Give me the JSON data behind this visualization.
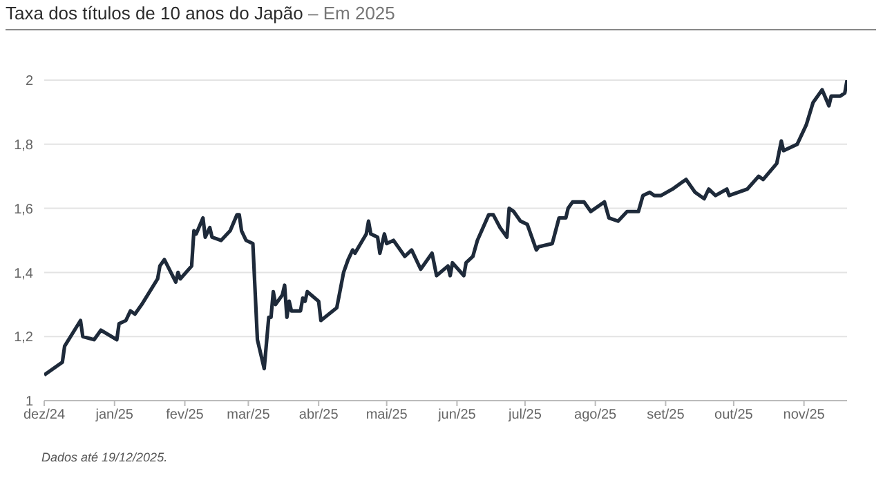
{
  "chart_data": {
    "type": "line",
    "title": "Taxa dos títulos de 10 anos do Japão",
    "subtitle": "– Em 2025",
    "annotations": [
      "Dados até 19/12/2025."
    ],
    "x": [
      "2024-12-01",
      "2024-12-09",
      "2024-12-10",
      "2024-12-17",
      "2024-12-18",
      "2024-12-23",
      "2024-12-26",
      "2025-01-02",
      "2025-01-03",
      "2025-01-06",
      "2025-01-08",
      "2025-01-10",
      "2025-01-13",
      "2025-01-20",
      "2025-01-21",
      "2025-01-23",
      "2025-01-28",
      "2025-01-29",
      "2025-01-30",
      "2025-02-04",
      "2025-02-05",
      "2025-02-06",
      "2025-02-09",
      "2025-02-10",
      "2025-02-12",
      "2025-02-13",
      "2025-02-17",
      "2025-02-21",
      "2025-02-24",
      "2025-02-25",
      "2025-02-26",
      "2025-02-28",
      "2025-03-03",
      "2025-03-05",
      "2025-03-08",
      "2025-03-10",
      "2025-03-11",
      "2025-03-12",
      "2025-03-13",
      "2025-03-16",
      "2025-03-17",
      "2025-03-18",
      "2025-03-19",
      "2025-03-20",
      "2025-03-24",
      "2025-03-25",
      "2025-03-26",
      "2025-03-27",
      "2025-04-01",
      "2025-04-02",
      "2025-04-09",
      "2025-04-12",
      "2025-04-14",
      "2025-04-16",
      "2025-04-17",
      "2025-04-22",
      "2025-04-23",
      "2025-04-24",
      "2025-04-27",
      "2025-04-28",
      "2025-04-30",
      "2025-05-01",
      "2025-05-04",
      "2025-05-06",
      "2025-05-09",
      "2025-05-12",
      "2025-05-16",
      "2025-05-21",
      "2025-05-23",
      "2025-05-28",
      "2025-05-29",
      "2025-05-30",
      "2025-06-04",
      "2025-06-05",
      "2025-06-08",
      "2025-06-10",
      "2025-06-15",
      "2025-06-17",
      "2025-06-20",
      "2025-06-23",
      "2025-06-24",
      "2025-06-26",
      "2025-06-29",
      "2025-07-02",
      "2025-07-06",
      "2025-07-07",
      "2025-07-13",
      "2025-07-16",
      "2025-07-19",
      "2025-07-20",
      "2025-07-22",
      "2025-07-27",
      "2025-07-30",
      "2025-08-05",
      "2025-08-07",
      "2025-08-11",
      "2025-08-15",
      "2025-08-20",
      "2025-08-22",
      "2025-08-25",
      "2025-08-27",
      "2025-08-30",
      "2025-09-04",
      "2025-09-08",
      "2025-09-10",
      "2025-09-14",
      "2025-09-18",
      "2025-09-20",
      "2025-09-23",
      "2025-09-28",
      "2025-09-29",
      "2025-10-07",
      "2025-10-12",
      "2025-10-14",
      "2025-10-20",
      "2025-10-22",
      "2025-10-23",
      "2025-10-29",
      "2025-11-02",
      "2025-11-05",
      "2025-11-09",
      "2025-11-12",
      "2025-11-13",
      "2025-11-17",
      "2025-11-19",
      "2025-11-20"
    ],
    "series": [
      {
        "color": "#1e2a3a",
        "values": [
          1.08,
          1.12,
          1.17,
          1.25,
          1.2,
          1.19,
          1.22,
          1.19,
          1.24,
          1.25,
          1.28,
          1.27,
          1.3,
          1.38,
          1.42,
          1.44,
          1.37,
          1.4,
          1.38,
          1.42,
          1.53,
          1.52,
          1.57,
          1.51,
          1.54,
          1.51,
          1.5,
          1.53,
          1.58,
          1.58,
          1.53,
          1.5,
          1.49,
          1.19,
          1.1,
          1.26,
          1.26,
          1.34,
          1.3,
          1.33,
          1.36,
          1.26,
          1.31,
          1.28,
          1.28,
          1.32,
          1.31,
          1.34,
          1.31,
          1.25,
          1.29,
          1.4,
          1.44,
          1.47,
          1.46,
          1.52,
          1.56,
          1.52,
          1.51,
          1.46,
          1.52,
          1.49,
          1.5,
          1.48,
          1.45,
          1.47,
          1.41,
          1.46,
          1.39,
          1.42,
          1.39,
          1.43,
          1.39,
          1.43,
          1.45,
          1.5,
          1.58,
          1.58,
          1.54,
          1.51,
          1.6,
          1.59,
          1.56,
          1.55,
          1.47,
          1.48,
          1.49,
          1.57,
          1.57,
          1.6,
          1.62,
          1.62,
          1.59,
          1.62,
          1.57,
          1.56,
          1.59,
          1.59,
          1.64,
          1.65,
          1.64,
          1.64,
          1.66,
          1.68,
          1.69,
          1.65,
          1.63,
          1.66,
          1.64,
          1.66,
          1.64,
          1.66,
          1.7,
          1.69,
          1.74,
          1.81,
          1.78,
          1.8,
          1.86,
          1.93,
          1.97,
          1.92,
          1.95,
          1.95,
          1.96,
          2
        ]
      }
    ],
    "xlim": [
      "2024-12-01",
      "2025-11-20"
    ],
    "xticks": [
      {
        "value": "2024-12-01",
        "label": "dez/24"
      },
      {
        "value": "2025-01-01",
        "label": "jan/25"
      },
      {
        "value": "2025-02-01",
        "label": "fev/25"
      },
      {
        "value": "2025-03-01",
        "label": "mar/25"
      },
      {
        "value": "2025-04-01",
        "label": "abr/25"
      },
      {
        "value": "2025-05-01",
        "label": "mai/25"
      },
      {
        "value": "2025-06-01",
        "label": "jun/25"
      },
      {
        "value": "2025-07-01",
        "label": "jul/25"
      },
      {
        "value": "2025-08-01",
        "label": "ago/25"
      },
      {
        "value": "2025-09-01",
        "label": "set/25"
      },
      {
        "value": "2025-10-01",
        "label": "out/25"
      },
      {
        "value": "2025-11-01",
        "label": "nov/25"
      }
    ],
    "ylim": [
      1,
      2
    ],
    "yticks": [
      {
        "value": 1,
        "label": "1"
      },
      {
        "value": 1.2,
        "label": "1,2"
      },
      {
        "value": 1.4,
        "label": "1,4"
      },
      {
        "value": 1.6,
        "label": "1,6"
      },
      {
        "value": 1.8,
        "label": "1,8"
      },
      {
        "value": 2,
        "label": "2"
      }
    ],
    "grid": "y",
    "legend": false,
    "marker": "none",
    "line_style": "solid"
  }
}
